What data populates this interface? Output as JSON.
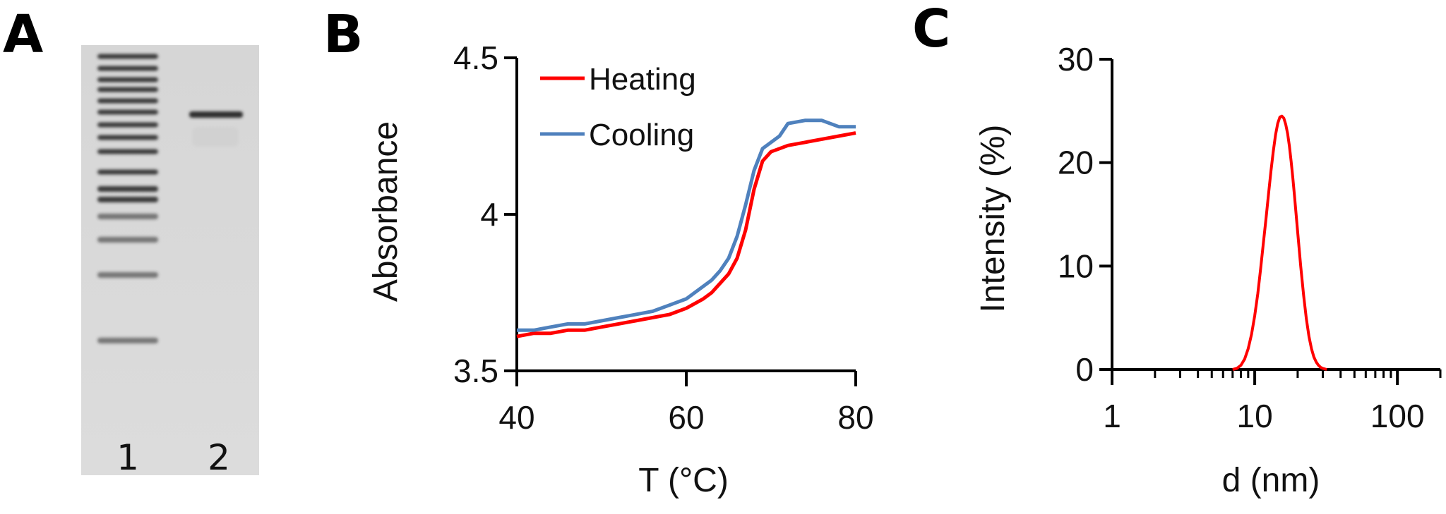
{
  "colors": {
    "heating": "#ff0000",
    "cooling": "#4f81bd",
    "dls": "#ff0000",
    "gel_background": "#d9d9d9",
    "band": "#333333"
  },
  "panels": {
    "A": {
      "letter": "A",
      "lanes": [
        "1",
        "2"
      ],
      "ladder_band_count": 16,
      "sample_band_count": 1
    },
    "B": {
      "letter": "B"
    },
    "C": {
      "letter": "C"
    }
  },
  "chart_data": [
    {
      "panel": "B",
      "type": "line",
      "title": "",
      "xlabel": "T (°C)",
      "ylabel": "Absorbance",
      "xlim": [
        40,
        80
      ],
      "ylim": [
        3.5,
        4.5
      ],
      "xticks": [
        40,
        60,
        80
      ],
      "xtick_labels": [
        "40",
        "60",
        "80"
      ],
      "yticks": [
        3.5,
        4,
        4.5
      ],
      "ytick_labels": [
        "3.5",
        "4",
        "4.5"
      ],
      "legend_position": "top-left",
      "series": [
        {
          "name": "Heating",
          "color_key": "heating",
          "x": [
            40,
            42,
            44,
            46,
            48,
            50,
            52,
            54,
            56,
            58,
            60,
            62,
            63,
            64,
            65,
            66,
            67,
            68,
            69,
            70,
            71,
            72,
            74,
            76,
            78,
            80
          ],
          "y": [
            3.61,
            3.62,
            3.62,
            3.63,
            3.63,
            3.64,
            3.65,
            3.66,
            3.67,
            3.68,
            3.7,
            3.73,
            3.75,
            3.78,
            3.81,
            3.86,
            3.95,
            4.08,
            4.17,
            4.2,
            4.21,
            4.22,
            4.23,
            4.24,
            4.25,
            4.26
          ]
        },
        {
          "name": "Cooling",
          "color_key": "cooling",
          "x": [
            40,
            42,
            44,
            46,
            48,
            50,
            52,
            54,
            56,
            58,
            60,
            62,
            63,
            64,
            65,
            66,
            67,
            68,
            69,
            70,
            71,
            72,
            74,
            76,
            78,
            80
          ],
          "y": [
            3.63,
            3.63,
            3.64,
            3.65,
            3.65,
            3.66,
            3.67,
            3.68,
            3.69,
            3.71,
            3.73,
            3.77,
            3.79,
            3.82,
            3.86,
            3.93,
            4.03,
            4.14,
            4.21,
            4.23,
            4.25,
            4.29,
            4.3,
            4.3,
            4.28,
            4.28
          ]
        }
      ]
    },
    {
      "panel": "C",
      "type": "line",
      "title": "",
      "xlabel": "d (nm)",
      "ylabel": "Intensity (%)",
      "xscale": "log",
      "xlim": [
        1,
        200
      ],
      "ylim": [
        0,
        30
      ],
      "xticks": [
        1,
        10,
        100
      ],
      "xtick_labels": [
        "1",
        "10",
        "100"
      ],
      "yticks": [
        0,
        10,
        20,
        30
      ],
      "ytick_labels": [
        "0",
        "10",
        "20",
        "30"
      ],
      "series": [
        {
          "name": "Intensity",
          "color_key": "dls",
          "x": [
            7,
            7.5,
            8,
            8.5,
            9,
            9.5,
            10,
            10.5,
            11,
            11.5,
            12,
            12.5,
            13,
            13.5,
            14,
            14.5,
            15,
            15.5,
            16,
            16.5,
            17,
            17.5,
            18,
            18.5,
            19,
            20,
            21,
            22,
            23,
            24,
            25,
            26,
            27,
            28,
            29,
            30,
            32
          ],
          "y": [
            0,
            0.1,
            0.4,
            1.0,
            2.0,
            3.4,
            5.2,
            7.3,
            9.7,
            12.2,
            14.6,
            17.0,
            19.2,
            21.1,
            22.7,
            23.8,
            24.4,
            24.5,
            24.3,
            23.7,
            22.8,
            21.6,
            20.1,
            18.5,
            16.8,
            13.3,
            10.0,
            7.2,
            4.9,
            3.2,
            2.0,
            1.2,
            0.7,
            0.4,
            0.2,
            0.1,
            0
          ]
        }
      ]
    }
  ]
}
